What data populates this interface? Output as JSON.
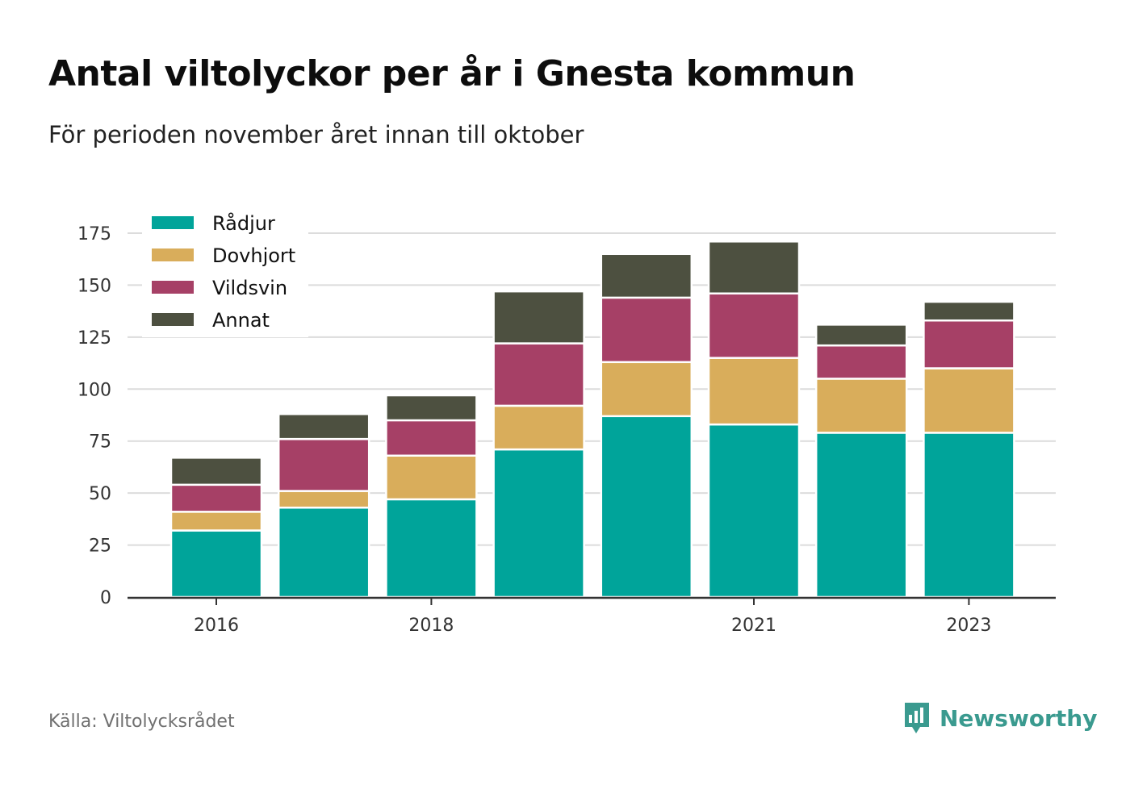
{
  "title": "Antal viltolyckor per år i Gnesta kommun",
  "subtitle": "För perioden november året innan till oktober",
  "source": "Källa: Viltolycksrådet",
  "brand": {
    "name": "Newsworthy",
    "color": "#3a9a8f",
    "icon": "newsworthy-logo-icon"
  },
  "chart_data": {
    "type": "bar",
    "stacked": true,
    "x": [
      2016,
      2017,
      2018,
      2019,
      2020,
      2021,
      2022,
      2023
    ],
    "x_tick_labels": [
      "2016",
      "2018",
      "2021",
      "2023"
    ],
    "ylim": [
      0,
      175
    ],
    "y_ticks": [
      0,
      25,
      50,
      75,
      100,
      125,
      150,
      175
    ],
    "grid": true,
    "legend_position": "top-left",
    "series": [
      {
        "name": "Rådjur",
        "color": "#00a49a",
        "values": [
          32,
          43,
          47,
          71,
          87,
          83,
          79,
          79
        ]
      },
      {
        "name": "Dovhjort",
        "color": "#d9ad5b",
        "values": [
          9,
          8,
          21,
          21,
          26,
          32,
          26,
          31
        ]
      },
      {
        "name": "Vildsvin",
        "color": "#a64066",
        "values": [
          13,
          25,
          17,
          30,
          31,
          31,
          16,
          23
        ]
      },
      {
        "name": "Annat",
        "color": "#4d5040",
        "values": [
          13,
          12,
          12,
          25,
          21,
          25,
          10,
          9
        ]
      }
    ]
  }
}
